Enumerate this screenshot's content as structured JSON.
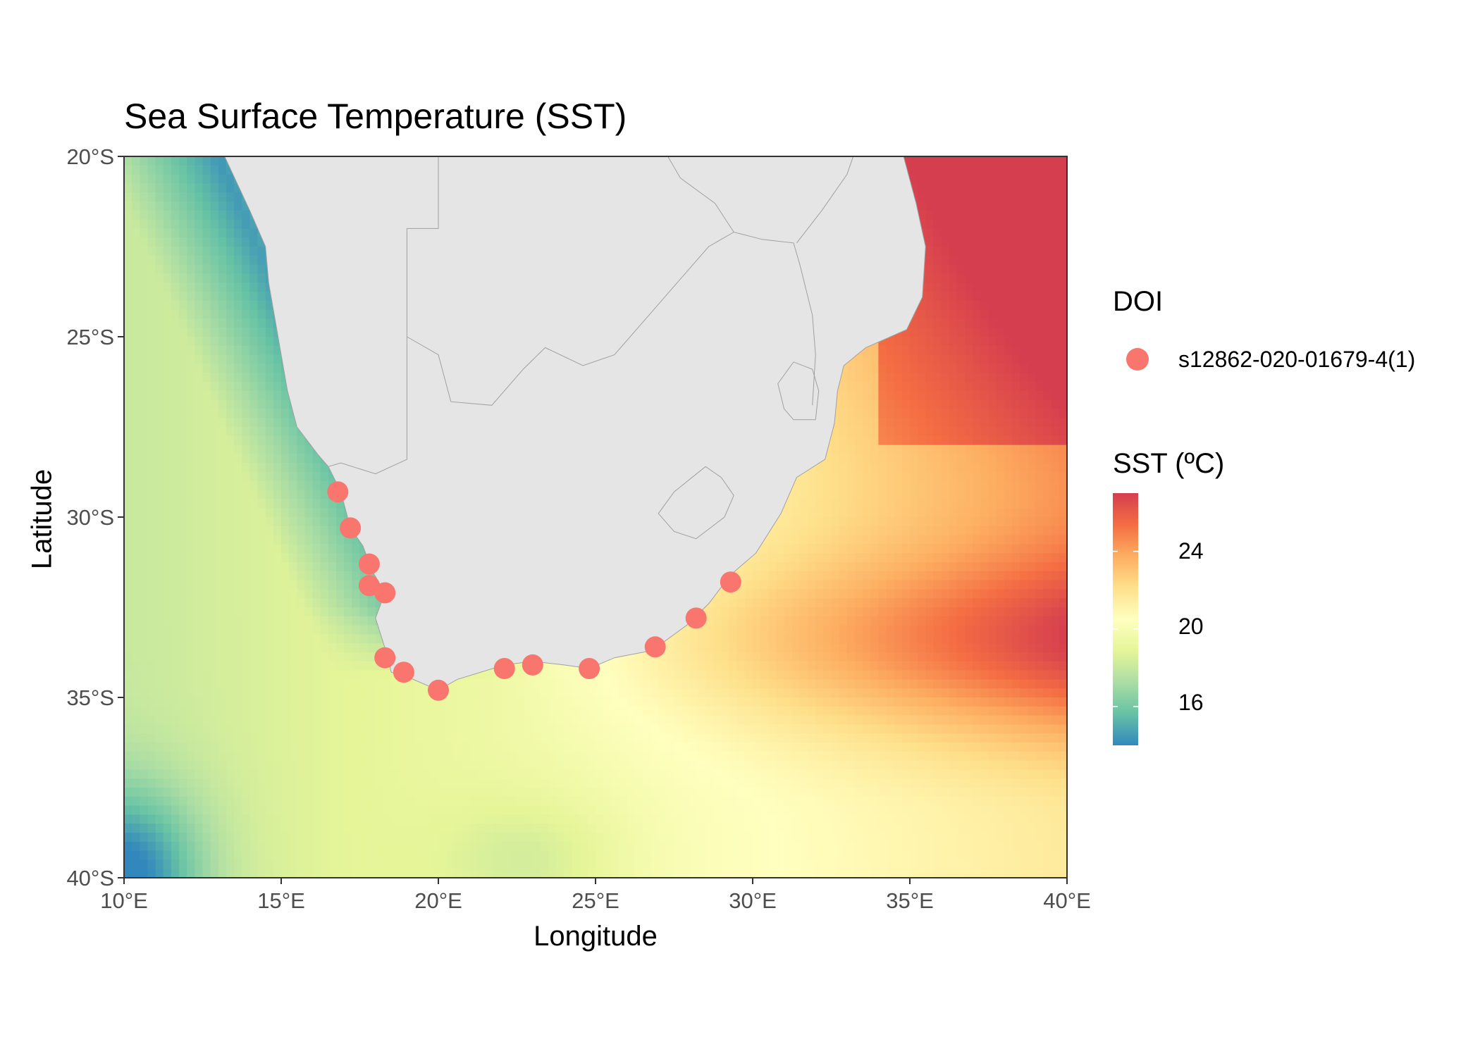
{
  "title": "Sea Surface Temperature (SST)",
  "x_axis": {
    "label": "Longitude",
    "ticks": [
      "10°E",
      "15°E",
      "20°E",
      "25°E",
      "30°E",
      "35°E",
      "40°E"
    ]
  },
  "y_axis": {
    "label": "Latitude",
    "ticks": [
      "20°S",
      "25°S",
      "30°S",
      "35°S",
      "40°S"
    ]
  },
  "legend_doi": {
    "title": "DOI",
    "entries": [
      {
        "label": "s12862-020-01679-4(1)",
        "color": "#F8766D"
      }
    ]
  },
  "legend_sst": {
    "title": "SST (ºC)",
    "breaks": [
      "24",
      "20",
      "16"
    ],
    "colors": [
      "#3288BD",
      "#66C2A5",
      "#ABDDA4",
      "#E6F598",
      "#FFFFBF",
      "#FEE08B",
      "#FDAE61",
      "#F46D43",
      "#D53E4F"
    ]
  },
  "map": {
    "land_color": "#E5E5E5",
    "border_color": "#A0A0A0",
    "xlim": [
      10,
      40
    ],
    "ylim": [
      -40,
      -20
    ]
  },
  "chart_data": {
    "type": "scatter",
    "title": "Sea Surface Temperature (SST)",
    "xlabel": "Longitude",
    "ylabel": "Latitude",
    "xlim": [
      10,
      40
    ],
    "ylim": [
      -40,
      -20
    ],
    "sst_range": [
      14,
      27
    ],
    "series": [
      {
        "name": "s12862-020-01679-4(1)",
        "color": "#F8766D",
        "points": [
          {
            "lon": 16.8,
            "lat": -29.3
          },
          {
            "lon": 17.2,
            "lat": -30.3
          },
          {
            "lon": 17.8,
            "lat": -31.3
          },
          {
            "lon": 17.8,
            "lat": -31.9
          },
          {
            "lon": 18.3,
            "lat": -32.1
          },
          {
            "lon": 18.3,
            "lat": -33.9
          },
          {
            "lon": 18.9,
            "lat": -34.3
          },
          {
            "lon": 20.0,
            "lat": -34.8
          },
          {
            "lon": 22.1,
            "lat": -34.2
          },
          {
            "lon": 23.0,
            "lat": -34.1
          },
          {
            "lon": 24.8,
            "lat": -34.2
          },
          {
            "lon": 26.9,
            "lat": -33.6
          },
          {
            "lon": 28.2,
            "lat": -32.8
          },
          {
            "lon": 29.3,
            "lat": -31.8
          }
        ]
      }
    ]
  }
}
